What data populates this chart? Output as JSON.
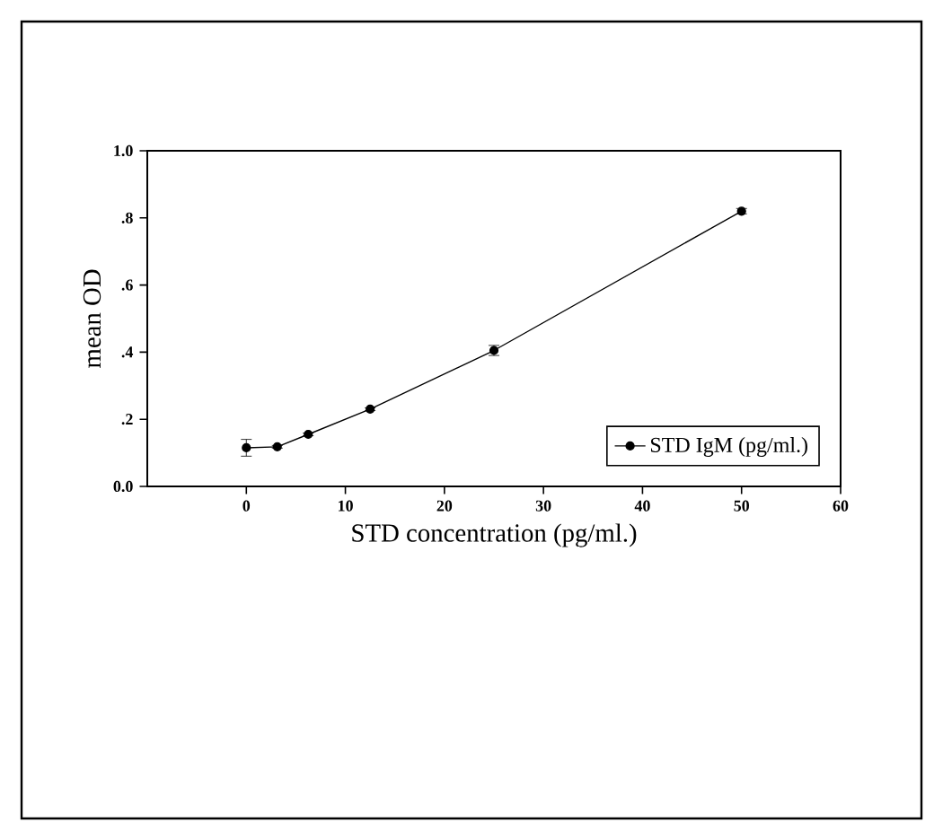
{
  "chart_data": {
    "type": "line",
    "xlabel": "STD concentration (pg/ml.)",
    "ylabel": "mean OD",
    "x": [
      0,
      3.125,
      6.25,
      12.5,
      25,
      50
    ],
    "series": [
      {
        "name": "STD IgM (pg/ml.)",
        "color": "#000000",
        "values": [
          0.115,
          0.118,
          0.155,
          0.23,
          0.405,
          0.82
        ],
        "errors": [
          0.025,
          0.004,
          0.004,
          0.004,
          0.015,
          0.008
        ]
      }
    ],
    "xlim": [
      -10,
      60
    ],
    "xticks": [
      0,
      10,
      20,
      30,
      40,
      50,
      60
    ],
    "ylim": [
      0,
      1.0
    ],
    "yticks": [
      {
        "value": 0,
        "label": "0.0"
      },
      {
        "value": 0.2,
        "label": ".2"
      },
      {
        "value": 0.4,
        "label": ".4"
      },
      {
        "value": 0.6,
        "label": ".6"
      },
      {
        "value": 0.8,
        "label": ".8"
      },
      {
        "value": 1.0,
        "label": "1.0"
      }
    ],
    "grid": false,
    "legend": "bottom right",
    "marker": "circle",
    "line_style": "solid"
  }
}
